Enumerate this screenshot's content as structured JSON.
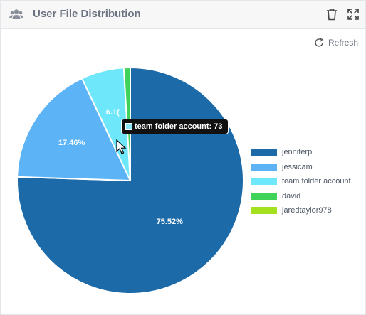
{
  "header": {
    "title": "User File Distribution",
    "icons": [
      "users-icon",
      "trash-icon",
      "expand-icon"
    ]
  },
  "toolbar": {
    "refresh_label": "Refresh",
    "refresh_icon": "refresh-icon"
  },
  "tooltip": {
    "text": "team folder account: 73",
    "color": "#8be4f8"
  },
  "chart_data": {
    "type": "pie",
    "title": "",
    "slices": [
      {
        "label": "jenniferp",
        "percent": 75.52,
        "display": "75.52%",
        "color": "#1c6aa8"
      },
      {
        "label": "jessicam",
        "percent": 17.46,
        "display": "17.46%",
        "color": "#5cb3f6"
      },
      {
        "label": "team folder account",
        "percent": 6.1,
        "display": "6.1(",
        "color": "#6ee7fb"
      },
      {
        "label": "david",
        "percent": 0.92,
        "display": "",
        "color": "#3fd35a"
      },
      {
        "label": "jaredtaylor978",
        "percent": 0.0,
        "display": "",
        "color": "#a3e01e"
      }
    ],
    "legend": [
      "jenniferp",
      "jessicam",
      "team folder account",
      "david",
      "jaredtaylor978"
    ],
    "legend_position": "right"
  }
}
